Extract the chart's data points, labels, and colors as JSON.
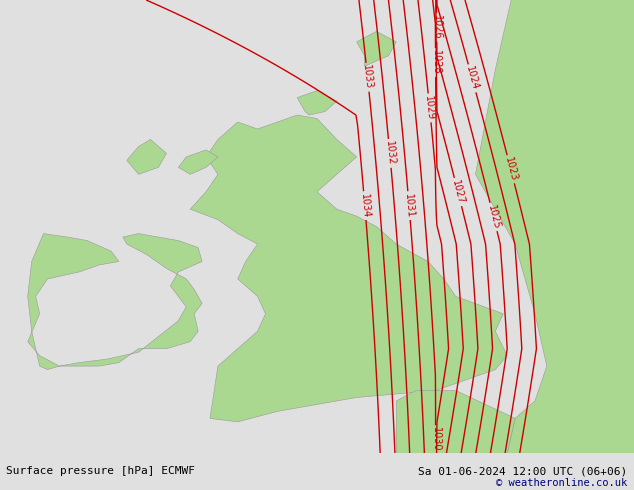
{
  "title_left": "Surface pressure [hPa] ECMWF",
  "title_right": "Sa 01-06-2024 12:00 UTC (06+06)",
  "copyright": "© weatheronline.co.uk",
  "bg_color": "#e0e0e0",
  "land_color": "#aad890",
  "contour_color": "#cc0000",
  "contour_linewidth": 1.0,
  "contour_levels": [
    1023,
    1024,
    1025,
    1026,
    1027,
    1028,
    1029,
    1030,
    1031,
    1032,
    1033,
    1034
  ],
  "label_fontsize": 7,
  "bottom_bar_color": "#c8c8c8",
  "title_fontsize": 8,
  "figwidth": 6.34,
  "figheight": 4.9,
  "dpi": 100,
  "lon_min": -11.0,
  "lon_max": 5.0,
  "lat_min": 49.0,
  "lat_max": 62.0
}
